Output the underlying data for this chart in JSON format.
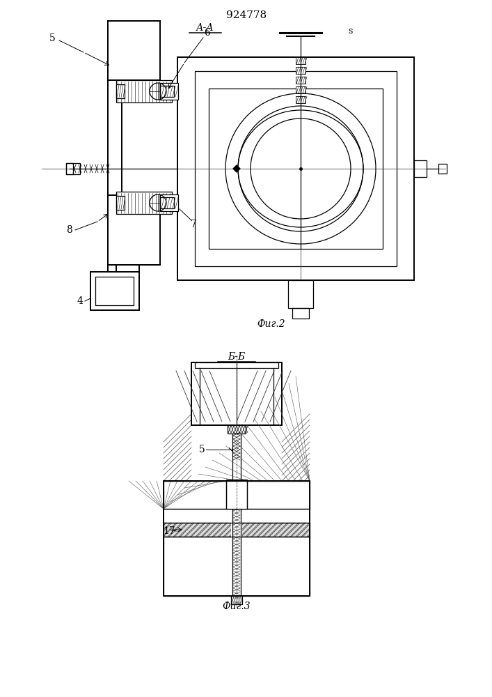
{
  "title": "924778",
  "fig2_label": "Фиг.2",
  "fig3_label": "Фиг.3",
  "section_aa": "А-А",
  "section_bb": "Б-Б",
  "label_5": "5",
  "label_6": "6",
  "label_7": "7",
  "label_8": "8",
  "label_4": "4",
  "label_s": "s",
  "label_17": "17",
  "bg_color": "#ffffff",
  "line_color": "#000000"
}
